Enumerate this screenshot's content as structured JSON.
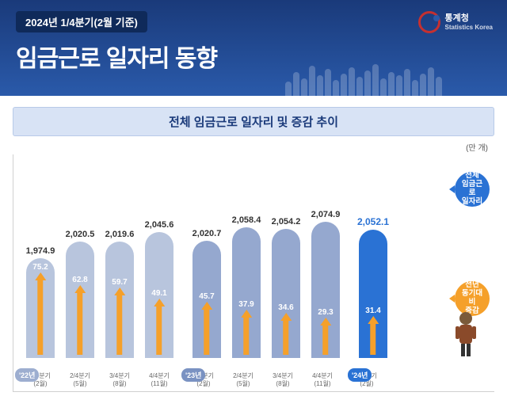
{
  "header": {
    "period": "2024년 1/4분기(2월 기준)",
    "title": "임금근로 일자리 동향",
    "logo_name": "통계청",
    "logo_en": "Statistics Korea"
  },
  "chart": {
    "type": "bar",
    "title": "전체 임금근로 일자리 및 증감 추이",
    "unit": "(만 개)",
    "ylim": [
      0,
      2200
    ],
    "arrow_color": "#f5a02a",
    "highlight_bar_color": "#2a72d4",
    "callout_total": {
      "label": "전체\n임금근로\n일자리",
      "color": "#2a72d4"
    },
    "callout_change": {
      "label": "전년\n동기대비\n증감",
      "color": "#f5a02a"
    },
    "groups": [
      {
        "year_label": "'22년",
        "tag_color": "#9daed0",
        "bar_color": "#b8c5dd",
        "bars": [
          {
            "label": "1/4분기\n(2월)",
            "value": 1974.9,
            "change": 75.2
          },
          {
            "label": "2/4분기\n(5월)",
            "value": 2020.5,
            "change": 62.8
          },
          {
            "label": "3/4분기\n(8월)",
            "value": 2019.6,
            "change": 59.7
          },
          {
            "label": "4/4분기\n(11월)",
            "value": 2045.6,
            "change": 49.1
          }
        ]
      },
      {
        "year_label": "'23년",
        "tag_color": "#7a92c2",
        "bar_color": "#95a8cf",
        "bars": [
          {
            "label": "1/4분기\n(2월)",
            "value": 2020.7,
            "change": 45.7
          },
          {
            "label": "2/4분기\n(5월)",
            "value": 2058.4,
            "change": 37.9
          },
          {
            "label": "3/4분기\n(8월)",
            "value": 2054.2,
            "change": 34.6
          },
          {
            "label": "4/4분기\n(11월)",
            "value": 2074.9,
            "change": 29.3
          }
        ]
      },
      {
        "year_label": "'24년",
        "tag_color": "#2a72d4",
        "bar_color": "#2a72d4",
        "bars": [
          {
            "label": "1/4분기\n(2월)",
            "value": 2052.1,
            "change": 31.4,
            "highlight": true
          }
        ]
      }
    ]
  }
}
